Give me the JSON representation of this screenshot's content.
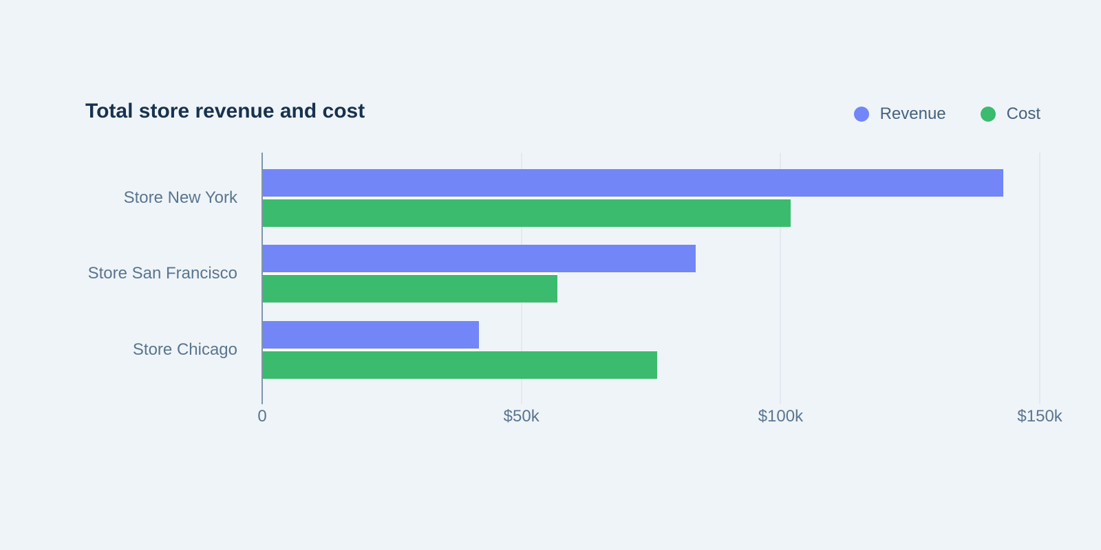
{
  "title": "Total store revenue and cost",
  "legend": [
    {
      "label": "Revenue",
      "color": "#7286F7"
    },
    {
      "label": "Cost",
      "color": "#3BBB6D"
    }
  ],
  "chart_data": {
    "type": "bar",
    "orientation": "horizontal",
    "title": "Total store revenue and cost",
    "xlabel": "",
    "ylabel": "",
    "categories": [
      "Store New York",
      "Store San Francisco",
      "Store Chicago"
    ],
    "series": [
      {
        "name": "Revenue",
        "color": "#7286F7",
        "values": [
          142800,
          83500,
          41700
        ]
      },
      {
        "name": "Cost",
        "color": "#3BBB6D",
        "values": [
          101800,
          56800,
          76000
        ]
      }
    ],
    "xlim": [
      0,
      155000
    ],
    "x_ticks": [
      {
        "value": 0,
        "label": "0"
      },
      {
        "value": 50000,
        "label": "$50k"
      },
      {
        "value": 100000,
        "label": "$100k"
      },
      {
        "value": 150000,
        "label": "$150k"
      }
    ],
    "grid": true,
    "legend_position": "top-right"
  },
  "colors": {
    "background": "#EFF4F8",
    "title_text": "#17324E",
    "axis_label_text": "#5A7590",
    "legend_text": "#45627E",
    "gridline": "#E3E9F0",
    "axis_line": "#8095AB",
    "bar_separator": "#FDFEFE"
  }
}
